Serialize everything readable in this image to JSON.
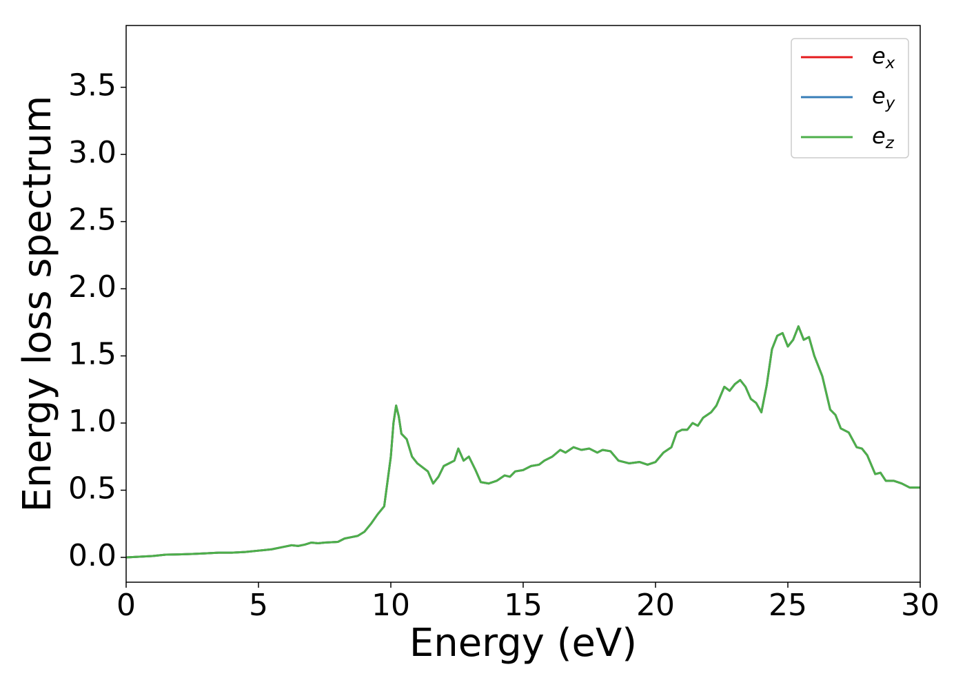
{
  "chart_data": {
    "type": "line",
    "xlabel": "Energy (eV)",
    "ylabel": "Energy loss spectrum",
    "x": [
      0,
      0.5,
      1,
      1.5,
      2,
      2.5,
      3,
      3.5,
      4,
      4.5,
      5,
      5.5,
      6,
      6.25,
      6.5,
      6.75,
      7,
      7.25,
      7.5,
      8,
      8.25,
      8.5,
      8.75,
      9,
      9.25,
      9.5,
      9.75,
      10,
      10.1,
      10.2,
      10.3,
      10.4,
      10.6,
      10.8,
      11,
      11.2,
      11.4,
      11.6,
      11.8,
      12,
      12.2,
      12.4,
      12.55,
      12.75,
      12.95,
      13.2,
      13.4,
      13.7,
      14,
      14.3,
      14.5,
      14.7,
      15,
      15.3,
      15.6,
      15.8,
      16.1,
      16.4,
      16.6,
      16.9,
      17.2,
      17.5,
      17.8,
      18,
      18.3,
      18.6,
      19,
      19.4,
      19.7,
      20,
      20.3,
      20.6,
      20.8,
      21,
      21.2,
      21.4,
      21.6,
      21.8,
      22.1,
      22.3,
      22.6,
      22.8,
      23,
      23.2,
      23.4,
      23.6,
      23.8,
      24,
      24.2,
      24.4,
      24.6,
      24.8,
      25,
      25.2,
      25.4,
      25.6,
      25.8,
      26,
      26.3,
      26.6,
      26.8,
      27,
      27.3,
      27.6,
      27.8,
      28,
      28.3,
      28.5,
      28.7,
      29,
      29.3,
      29.6,
      30
    ],
    "series": [
      {
        "name": "ex",
        "color": "#e41a1c",
        "values": [
          0,
          0.005,
          0.01,
          0.02,
          0.022,
          0.025,
          0.03,
          0.035,
          0.035,
          0.04,
          0.05,
          0.06,
          0.08,
          0.09,
          0.085,
          0.095,
          0.11,
          0.105,
          0.11,
          0.115,
          0.14,
          0.15,
          0.16,
          0.19,
          0.25,
          0.32,
          0.38,
          0.75,
          1.0,
          1.13,
          1.05,
          0.92,
          0.88,
          0.75,
          0.7,
          0.67,
          0.64,
          0.55,
          0.6,
          0.68,
          0.7,
          0.72,
          0.81,
          0.72,
          0.75,
          0.65,
          0.56,
          0.55,
          0.57,
          0.61,
          0.6,
          0.64,
          0.65,
          0.68,
          0.69,
          0.72,
          0.75,
          0.8,
          0.78,
          0.82,
          0.8,
          0.81,
          0.78,
          0.8,
          0.79,
          0.72,
          0.7,
          0.71,
          0.69,
          0.71,
          0.78,
          0.82,
          0.93,
          0.95,
          0.95,
          1.0,
          0.98,
          1.04,
          1.08,
          1.13,
          1.27,
          1.24,
          1.29,
          1.32,
          1.27,
          1.18,
          1.15,
          1.08,
          1.28,
          1.55,
          1.65,
          1.67,
          1.57,
          1.62,
          1.72,
          1.62,
          1.64,
          1.5,
          1.35,
          1.1,
          1.06,
          0.96,
          0.93,
          0.82,
          0.81,
          0.76,
          0.62,
          0.63,
          0.57,
          0.57,
          0.55,
          0.52,
          0.52
        ]
      },
      {
        "name": "ey",
        "color": "#377eb8",
        "values": [
          0,
          0.005,
          0.01,
          0.02,
          0.022,
          0.025,
          0.03,
          0.035,
          0.035,
          0.04,
          0.05,
          0.06,
          0.08,
          0.09,
          0.085,
          0.095,
          0.11,
          0.105,
          0.11,
          0.115,
          0.14,
          0.15,
          0.16,
          0.19,
          0.25,
          0.32,
          0.38,
          0.75,
          1.0,
          1.13,
          1.05,
          0.92,
          0.88,
          0.75,
          0.7,
          0.67,
          0.64,
          0.55,
          0.6,
          0.68,
          0.7,
          0.72,
          0.81,
          0.72,
          0.75,
          0.65,
          0.56,
          0.55,
          0.57,
          0.61,
          0.6,
          0.64,
          0.65,
          0.68,
          0.69,
          0.72,
          0.75,
          0.8,
          0.78,
          0.82,
          0.8,
          0.81,
          0.78,
          0.8,
          0.79,
          0.72,
          0.7,
          0.71,
          0.69,
          0.71,
          0.78,
          0.82,
          0.93,
          0.95,
          0.95,
          1.0,
          0.98,
          1.04,
          1.08,
          1.13,
          1.27,
          1.24,
          1.29,
          1.32,
          1.27,
          1.18,
          1.15,
          1.08,
          1.28,
          1.55,
          1.65,
          1.67,
          1.57,
          1.62,
          1.72,
          1.62,
          1.64,
          1.5,
          1.35,
          1.1,
          1.06,
          0.96,
          0.93,
          0.82,
          0.81,
          0.76,
          0.62,
          0.63,
          0.57,
          0.57,
          0.55,
          0.52,
          0.52
        ]
      },
      {
        "name": "ez",
        "color": "#4daf4a",
        "values": [
          0,
          0.005,
          0.01,
          0.02,
          0.022,
          0.025,
          0.03,
          0.035,
          0.035,
          0.04,
          0.05,
          0.06,
          0.08,
          0.09,
          0.085,
          0.095,
          0.11,
          0.105,
          0.11,
          0.115,
          0.14,
          0.15,
          0.16,
          0.19,
          0.25,
          0.32,
          0.38,
          0.75,
          1.0,
          1.13,
          1.05,
          0.92,
          0.88,
          0.75,
          0.7,
          0.67,
          0.64,
          0.55,
          0.6,
          0.68,
          0.7,
          0.72,
          0.81,
          0.72,
          0.75,
          0.65,
          0.56,
          0.55,
          0.57,
          0.61,
          0.6,
          0.64,
          0.65,
          0.68,
          0.69,
          0.72,
          0.75,
          0.8,
          0.78,
          0.82,
          0.8,
          0.81,
          0.78,
          0.8,
          0.79,
          0.72,
          0.7,
          0.71,
          0.69,
          0.71,
          0.78,
          0.82,
          0.93,
          0.95,
          0.95,
          1.0,
          0.98,
          1.04,
          1.08,
          1.13,
          1.27,
          1.24,
          1.29,
          1.32,
          1.27,
          1.18,
          1.15,
          1.08,
          1.28,
          1.55,
          1.65,
          1.67,
          1.57,
          1.62,
          1.72,
          1.62,
          1.64,
          1.5,
          1.35,
          1.1,
          1.06,
          0.96,
          0.93,
          0.82,
          0.81,
          0.76,
          0.62,
          0.63,
          0.57,
          0.57,
          0.55,
          0.52,
          0.52
        ]
      }
    ],
    "xlim": [
      0,
      30
    ],
    "xticks": [
      0,
      5,
      10,
      15,
      20,
      25,
      30
    ],
    "ylim": [
      -0.185,
      3.96
    ],
    "yticks": [
      {
        "value": 0,
        "label": "0.0"
      },
      {
        "value": 0.5,
        "label": "0.5"
      },
      {
        "value": 1,
        "label": "1.0"
      },
      {
        "value": 1.5,
        "label": "1.5"
      },
      {
        "value": 2,
        "label": "2.0"
      },
      {
        "value": 2.5,
        "label": "2.5"
      },
      {
        "value": 3,
        "label": "3.0"
      },
      {
        "value": 3.5,
        "label": "3.5"
      }
    ],
    "grid": false,
    "legend": "upper right"
  }
}
